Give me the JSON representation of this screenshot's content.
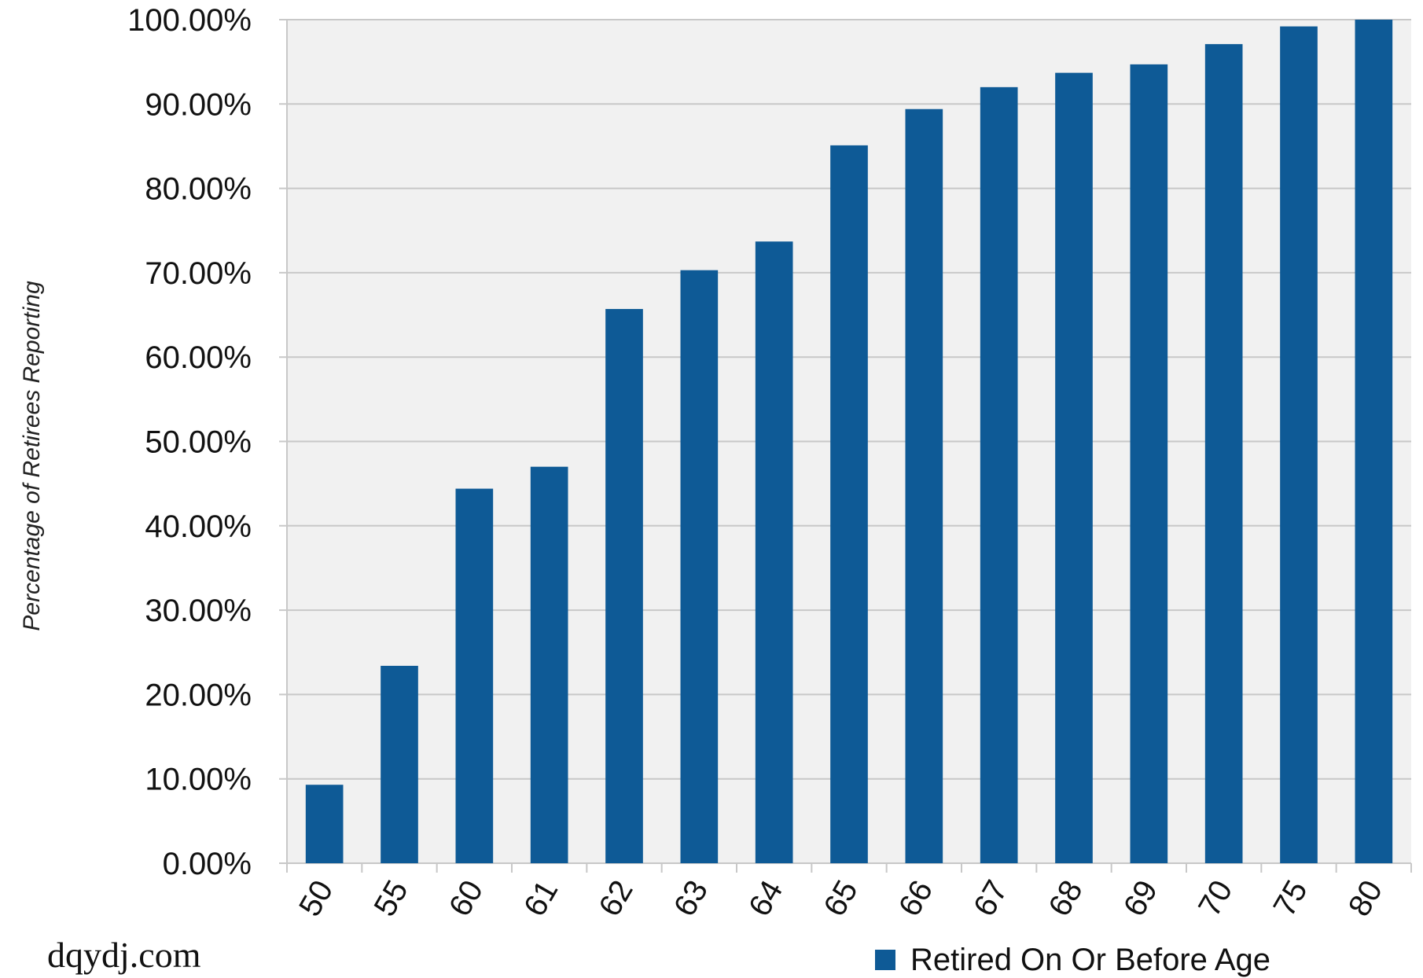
{
  "chart_data": {
    "type": "bar",
    "categories": [
      "50",
      "55",
      "60",
      "61",
      "62",
      "63",
      "64",
      "65",
      "66",
      "67",
      "68",
      "69",
      "70",
      "75",
      "80"
    ],
    "series": [
      {
        "name": "Retired On Or Before Age",
        "values": [
          9.3,
          23.4,
          44.4,
          47.0,
          65.7,
          70.3,
          73.7,
          85.1,
          89.4,
          92.0,
          93.7,
          94.7,
          97.1,
          99.2,
          100.0
        ]
      }
    ],
    "ylabel": "Percentage of Retirees Reporting",
    "ylim": [
      0,
      100
    ],
    "yticks": [
      0,
      10,
      20,
      30,
      40,
      50,
      60,
      70,
      80,
      90,
      100
    ],
    "ytick_labels": [
      "0.00%",
      "10.00%",
      "20.00%",
      "30.00%",
      "40.00%",
      "50.00%",
      "60.00%",
      "70.00%",
      "80.00%",
      "90.00%",
      "100.00%"
    ],
    "grid": true,
    "legend": "bottom-right",
    "bar_color": "#0e5a96",
    "plot_background": "#f1f1f1",
    "grid_color": "#c8c8c8"
  },
  "watermark": "dqydj.com"
}
